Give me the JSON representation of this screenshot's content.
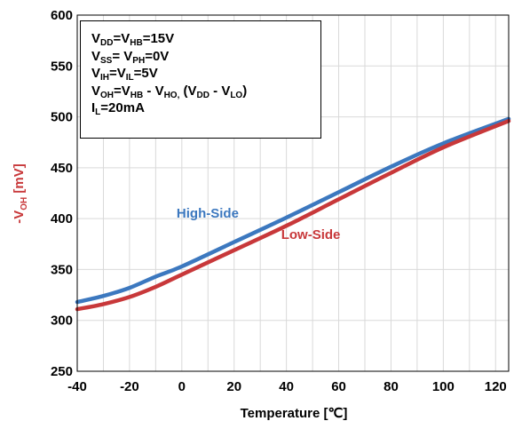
{
  "chart_data": {
    "type": "line",
    "xlabel": "Temperature [℃]",
    "ylabel": "-V",
    "ylabel_sub": "OH",
    "ylabel_unit": " [mV]",
    "xlim": [
      -40,
      125
    ],
    "ylim": [
      250,
      600
    ],
    "xticks": [
      -40,
      -20,
      0,
      20,
      40,
      60,
      80,
      100,
      120
    ],
    "yticks": [
      250,
      300,
      350,
      400,
      450,
      500,
      550,
      600
    ],
    "grid": true,
    "series": [
      {
        "name": "High-Side",
        "color": "#3c78bf",
        "x": [
          -40,
          -30,
          -20,
          -10,
          0,
          20,
          40,
          60,
          80,
          100,
          125
        ],
        "y": [
          318,
          324,
          332,
          343,
          353,
          377,
          401,
          426,
          451,
          474,
          498
        ]
      },
      {
        "name": "Low-Side",
        "color": "#c8383a",
        "x": [
          -40,
          -30,
          -20,
          -10,
          0,
          20,
          40,
          60,
          80,
          100,
          125
        ],
        "y": [
          311,
          316,
          323,
          333,
          345,
          369,
          393,
          419,
          445,
          470,
          496
        ]
      }
    ],
    "conditions": [
      [
        {
          "t": "V"
        },
        {
          "t": "DD",
          "sub": true
        },
        {
          "t": "=V"
        },
        {
          "t": "HB",
          "sub": true
        },
        {
          "t": "=15V"
        }
      ],
      [
        {
          "t": "V"
        },
        {
          "t": "SS",
          "sub": true
        },
        {
          "t": "= V"
        },
        {
          "t": "PH",
          "sub": true
        },
        {
          "t": "=0V"
        }
      ],
      [
        {
          "t": "V"
        },
        {
          "t": "IH",
          "sub": true
        },
        {
          "t": "=V"
        },
        {
          "t": "IL",
          "sub": true
        },
        {
          "t": "=5V"
        }
      ],
      [
        {
          "t": "V"
        },
        {
          "t": "OH",
          "sub": true
        },
        {
          "t": "=V"
        },
        {
          "t": "HB",
          "sub": true
        },
        {
          "t": " - V"
        },
        {
          "t": "HO,",
          "sub": true
        },
        {
          "t": " (V"
        },
        {
          "t": "DD",
          "sub": true
        },
        {
          "t": " - V"
        },
        {
          "t": "LO",
          "sub": true
        },
        {
          "t": ")"
        }
      ],
      [
        {
          "t": "I"
        },
        {
          "t": "L",
          "sub": true
        },
        {
          "t": "=20mA"
        }
      ]
    ]
  }
}
